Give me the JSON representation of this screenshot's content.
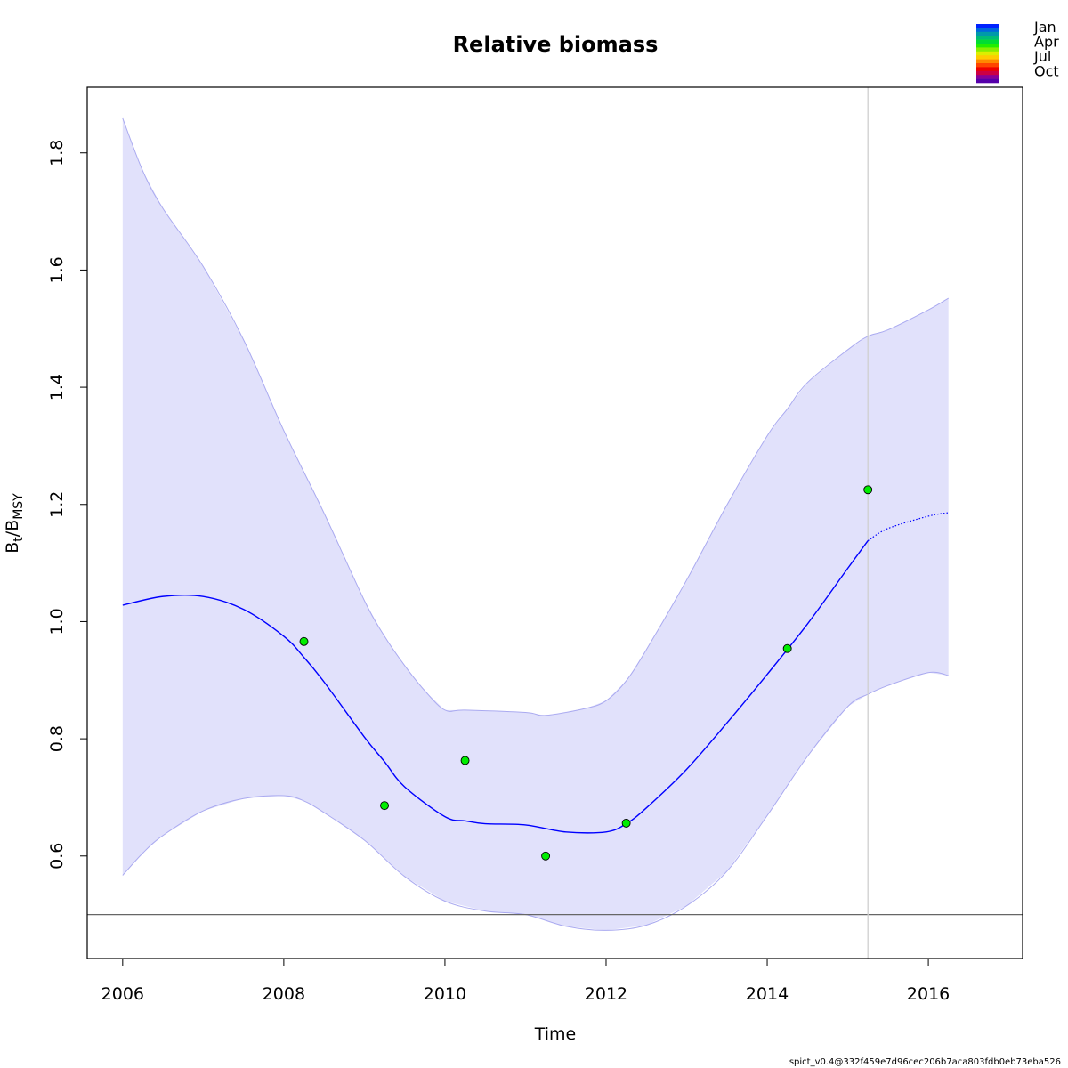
{
  "chart_data": {
    "type": "line",
    "title": "Relative biomass",
    "xlabel": "Time",
    "ylabel": {
      "main": "B",
      "sub1": "t",
      "sep": "/B",
      "sub2": "MSY"
    },
    "xlim": [
      2005.56,
      2017.17
    ],
    "ylim": [
      0.425,
      1.912
    ],
    "x_ticks": [
      2006,
      2008,
      2010,
      2012,
      2014,
      2016
    ],
    "y_ticks": [
      0.6,
      0.8,
      1.0,
      1.2,
      1.4,
      1.6,
      1.8
    ],
    "y_tick_labels": [
      "0.6",
      "0.8",
      "1.0",
      "1.2",
      "1.4",
      "1.6",
      "1.8"
    ],
    "colors": {
      "estimate": "#0000ff",
      "ci_fill": "#e1e1fb",
      "ci_border": "#aaaaf0",
      "points": "#00ee00",
      "reference_line": "#666666",
      "vline": "#cfcfcf",
      "frame": "#000000"
    },
    "estimate": {
      "x": [
        2006.0,
        2006.5,
        2007.0,
        2007.5,
        2008.0,
        2008.25,
        2008.5,
        2009.0,
        2009.25,
        2009.5,
        2010.0,
        2010.25,
        2010.5,
        2011.0,
        2011.5,
        2012.0,
        2012.25,
        2012.5,
        2013.0,
        2013.5,
        2014.0,
        2014.5,
        2015.0,
        2015.25
      ],
      "y": [
        1.028,
        1.043,
        1.043,
        1.021,
        0.975,
        0.939,
        0.897,
        0.803,
        0.761,
        0.718,
        0.667,
        0.66,
        0.655,
        0.653,
        0.641,
        0.641,
        0.655,
        0.682,
        0.748,
        0.827,
        0.91,
        0.996,
        1.091,
        1.138
      ]
    },
    "prediction": {
      "x": [
        2015.25,
        2015.5,
        2016.0,
        2016.25
      ],
      "y": [
        1.138,
        1.159,
        1.18,
        1.186
      ]
    },
    "ci_upper": {
      "x": [
        2006.0,
        2006.25,
        2006.5,
        2007.0,
        2007.5,
        2008.0,
        2008.5,
        2009.0,
        2009.25,
        2009.5,
        2009.75,
        2010.0,
        2010.25,
        2011.0,
        2011.25,
        2011.75,
        2012.0,
        2012.25,
        2012.5,
        2013.0,
        2013.5,
        2014.0,
        2014.25,
        2014.5,
        2015.0,
        2015.25,
        2015.5,
        2016.0,
        2016.25
      ],
      "y": [
        1.859,
        1.769,
        1.705,
        1.606,
        1.481,
        1.326,
        1.185,
        1.036,
        0.975,
        0.925,
        0.882,
        0.849,
        0.849,
        0.845,
        0.84,
        0.852,
        0.865,
        0.899,
        0.952,
        1.071,
        1.199,
        1.317,
        1.363,
        1.408,
        1.464,
        1.487,
        1.498,
        1.532,
        1.552
      ]
    },
    "ci_lower": {
      "x": [
        2006.0,
        2006.25,
        2006.5,
        2007.0,
        2007.5,
        2008.0,
        2008.25,
        2008.5,
        2009.0,
        2009.5,
        2010.0,
        2010.5,
        2011.0,
        2011.5,
        2012.0,
        2012.5,
        2013.0,
        2013.5,
        2014.0,
        2014.5,
        2015.0,
        2015.25,
        2015.5,
        2016.0,
        2016.25
      ],
      "y": [
        0.567,
        0.605,
        0.635,
        0.677,
        0.698,
        0.703,
        0.694,
        0.674,
        0.627,
        0.565,
        0.523,
        0.506,
        0.5,
        0.48,
        0.473,
        0.482,
        0.515,
        0.574,
        0.669,
        0.77,
        0.855,
        0.876,
        0.891,
        0.913,
        0.908
      ]
    },
    "observations": {
      "x": [
        2008.25,
        2009.25,
        2010.25,
        2011.25,
        2012.25,
        2014.25,
        2015.25
      ],
      "y": [
        0.966,
        0.686,
        0.763,
        0.6,
        0.656,
        0.954,
        1.225
      ]
    },
    "reference_line_y": 0.5,
    "vline_x": 2015.25,
    "legend": {
      "position": "top-right",
      "labels": [
        "Jan",
        "Apr",
        "Jul",
        "Oct"
      ],
      "colors": [
        "#0022ff",
        "#0066dd",
        "#0099aa",
        "#00bb77",
        "#00dd33",
        "#22ee00",
        "#88ee00",
        "#ddee00",
        "#ffcc00",
        "#ff8800",
        "#ff4400",
        "#ee0000",
        "#cc0044",
        "#880099",
        "#5500aa"
      ]
    },
    "footer": "spict_v0.4@332f459e7d96cec206b7aca803fdb0eb73eba526"
  }
}
